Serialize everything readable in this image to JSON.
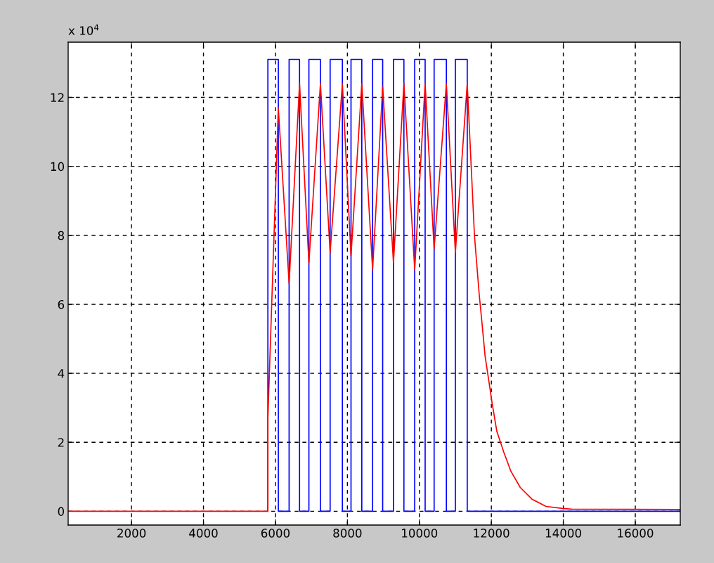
{
  "chart_data": {
    "type": "line",
    "xlim": [
      240,
      17250
    ],
    "ylim": [
      -0.4,
      13.6
    ],
    "xticks": [
      2000,
      4000,
      6000,
      8000,
      10000,
      12000,
      14000,
      16000
    ],
    "yticks": [
      0,
      2,
      4,
      6,
      8,
      10,
      12
    ],
    "grid": true,
    "line_style": "solid",
    "annotations": [
      "x 10$^{4}$"
    ],
    "series": [
      {
        "type": "step",
        "color": "#0000ff",
        "x": [
          5790,
          5790,
          6080,
          6380,
          6670,
          6930,
          7250,
          7520,
          7860,
          8100,
          8400,
          8700,
          8980,
          9280,
          9570,
          9870,
          10160,
          10410,
          10750,
          11000,
          11330,
          17250
        ],
        "values": [
          0,
          13.1,
          0,
          13.1,
          0,
          13.1,
          0,
          13.1,
          0,
          13.1,
          0,
          13.1,
          0,
          13.1,
          0,
          13.1,
          0,
          13.1,
          0,
          13.1,
          0,
          0
        ]
      },
      {
        "color": "#ff0000",
        "x": [
          240,
          5790,
          5790,
          6080,
          6380,
          6670,
          6930,
          7250,
          7520,
          7860,
          8100,
          8400,
          8700,
          8980,
          9280,
          9570,
          9870,
          10160,
          10410,
          10750,
          11000,
          11330,
          11440,
          11530,
          11664,
          11728,
          11826,
          11924,
          12021,
          12152,
          12347,
          12543,
          12803,
          13129,
          13520,
          13975,
          14230,
          17250
        ],
        "values": [
          0,
          0,
          2.7,
          11.7,
          6.6,
          12.4,
          7.2,
          12.4,
          7.5,
          12.4,
          7.4,
          12.4,
          7.0,
          12.3,
          7.2,
          12.4,
          7.0,
          12.4,
          7.6,
          12.4,
          7.5,
          12.4,
          10.0,
          8.0,
          6.27,
          5.59,
          4.5,
          3.82,
          3.14,
          2.32,
          1.71,
          1.16,
          0.69,
          0.35,
          0.14,
          0.08,
          0.06,
          0.05
        ]
      }
    ]
  }
}
